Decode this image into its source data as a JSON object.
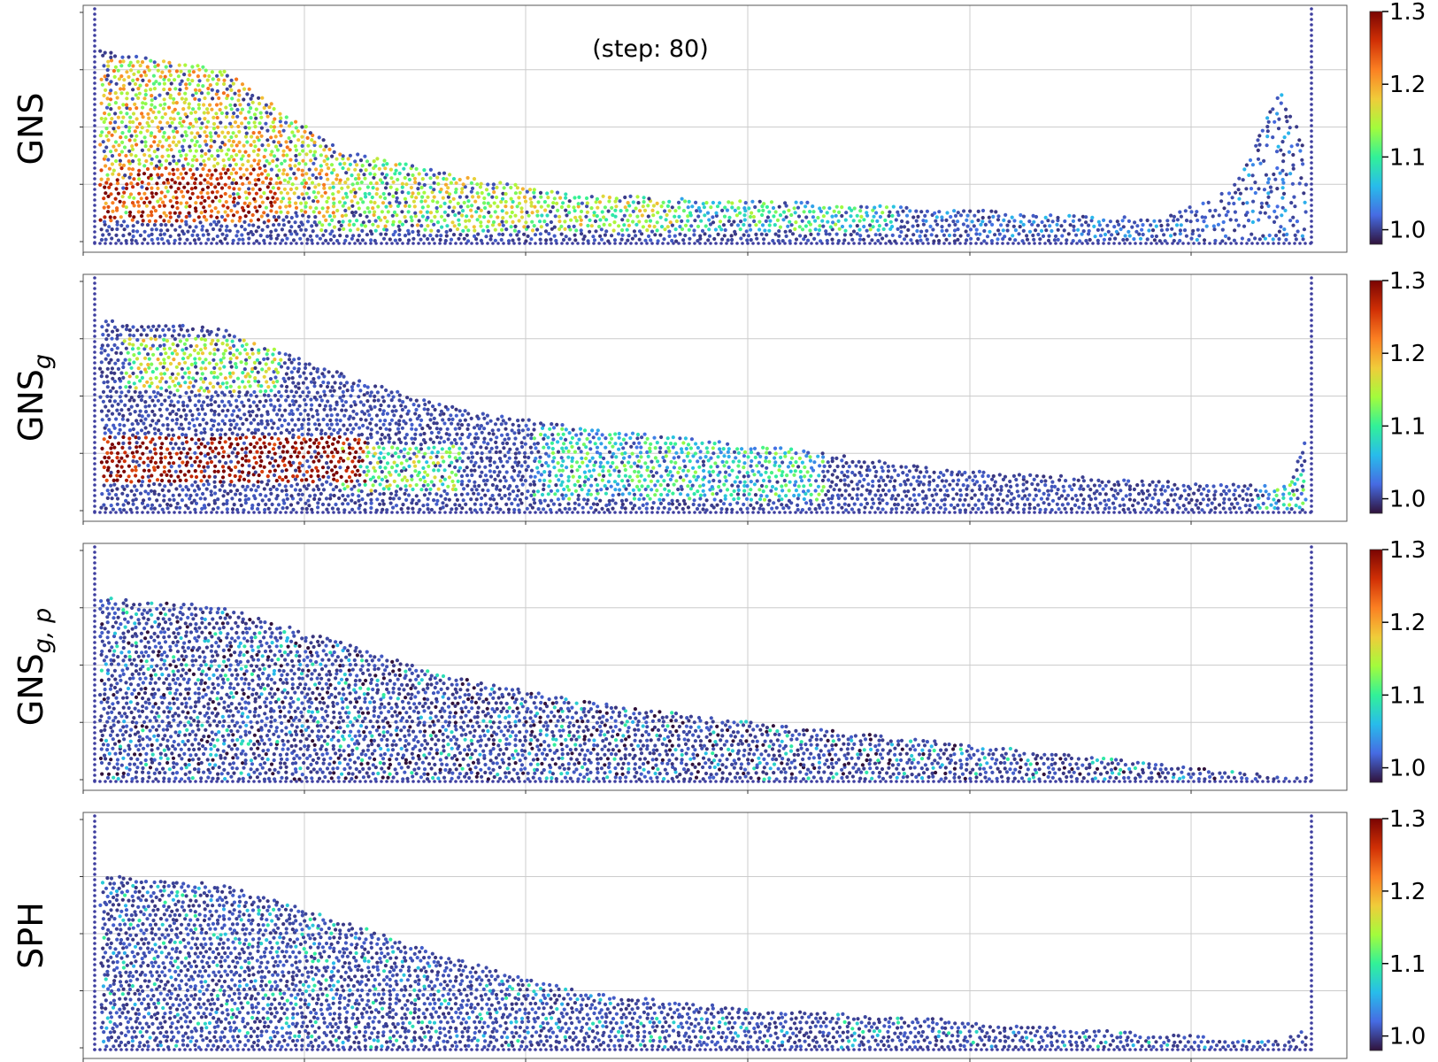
{
  "annotation": "(step: 80)",
  "colormap": "turbo",
  "colors": {
    "background": "#ffffff",
    "frame": "#000000",
    "grid": "#cccccc",
    "wall": "#3f3fa0"
  },
  "chart_data": [
    {
      "type": "scatter",
      "name": "GNS",
      "ylabel": {
        "base": "GNS",
        "sub": ""
      },
      "color_scale": {
        "min": 0.98,
        "max": 1.3,
        "ticks": [
          "1.0",
          "1.1",
          "1.2",
          "1.3"
        ]
      },
      "grid": true,
      "surface": [
        [
          0,
          0.21
        ],
        [
          0.1,
          0.19
        ],
        [
          0.2,
          0.1
        ],
        [
          0.3,
          0.07
        ],
        [
          0.4,
          0.05
        ],
        [
          0.58,
          0.042
        ],
        [
          0.7,
          0.035
        ],
        [
          0.8,
          0.027
        ],
        [
          0.88,
          0.024
        ],
        [
          0.94,
          0.062
        ],
        [
          0.97,
          0.15
        ],
        [
          0.98,
          0.18
        ],
        [
          0.985,
          0.15
        ],
        [
          1,
          0.1
        ]
      ],
      "density_regions": [
        {
          "x": [
            0,
            0.15
          ],
          "y": [
            0.02,
            0.08
          ],
          "value": 1.26
        },
        {
          "x": [
            0,
            0.2
          ],
          "y": [
            0.03,
            0.2
          ],
          "value": 1.17
        },
        {
          "x": [
            0.18,
            0.48
          ],
          "y": [
            0.01,
            0.09
          ],
          "value": 1.14
        },
        {
          "x": [
            0.48,
            0.66
          ],
          "y": [
            0.01,
            0.05
          ],
          "value": 1.09
        },
        {
          "x": [
            0.66,
            1
          ],
          "y": [
            0,
            0.2
          ],
          "value": 1.0
        }
      ]
    },
    {
      "type": "scatter",
      "name": "GNS_g",
      "ylabel": {
        "base": "GNS",
        "sub": "g"
      },
      "color_scale": {
        "min": 0.98,
        "max": 1.3,
        "ticks": [
          "1.0",
          "1.1",
          "1.2",
          "1.3"
        ]
      },
      "grid": true,
      "surface": [
        [
          0,
          0.21
        ],
        [
          0.1,
          0.2
        ],
        [
          0.2,
          0.15
        ],
        [
          0.3,
          0.11
        ],
        [
          0.4,
          0.09
        ],
        [
          0.55,
          0.07
        ],
        [
          0.7,
          0.045
        ],
        [
          0.82,
          0.035
        ],
        [
          0.9,
          0.03
        ],
        [
          0.985,
          0.025
        ],
        [
          1,
          0.08
        ]
      ],
      "density_regions": [
        {
          "x": [
            0,
            0.22
          ],
          "y": [
            0.03,
            0.08
          ],
          "value": 1.3
        },
        {
          "x": [
            0.02,
            0.15
          ],
          "y": [
            0.13,
            0.19
          ],
          "value": 1.14
        },
        {
          "x": [
            0.2,
            0.3
          ],
          "y": [
            0.02,
            0.07
          ],
          "value": 1.12
        },
        {
          "x": [
            0.36,
            0.6
          ],
          "y": [
            0.01,
            0.09
          ],
          "value": 1.08
        },
        {
          "x": [
            0.96,
            1
          ],
          "y": [
            0,
            0.04
          ],
          "value": 1.08
        }
      ]
    },
    {
      "type": "scatter",
      "name": "GNS_g,p",
      "ylabel": {
        "base": "GNS",
        "sub": "g, p"
      },
      "color_scale": {
        "min": 0.98,
        "max": 1.3,
        "ticks": [
          "1.0",
          "1.1",
          "1.2",
          "1.3"
        ]
      },
      "grid": true,
      "surface": [
        [
          0,
          0.2
        ],
        [
          0.1,
          0.19
        ],
        [
          0.2,
          0.15
        ],
        [
          0.3,
          0.11
        ],
        [
          0.4,
          0.085
        ],
        [
          0.55,
          0.06
        ],
        [
          0.7,
          0.04
        ],
        [
          0.8,
          0.027
        ],
        [
          0.9,
          0.012
        ],
        [
          0.97,
          0.003
        ],
        [
          1,
          0
        ]
      ],
      "density_regions": []
    },
    {
      "type": "scatter",
      "name": "SPH",
      "ylabel": {
        "base": "SPH",
        "sub": ""
      },
      "color_scale": {
        "min": 0.98,
        "max": 1.3,
        "ticks": [
          "1.0",
          "1.1",
          "1.2",
          "1.3"
        ]
      },
      "grid": true,
      "surface": [
        [
          0,
          0.19
        ],
        [
          0.1,
          0.18
        ],
        [
          0.2,
          0.14
        ],
        [
          0.3,
          0.095
        ],
        [
          0.4,
          0.06
        ],
        [
          0.55,
          0.04
        ],
        [
          0.7,
          0.03
        ],
        [
          0.8,
          0.02
        ],
        [
          0.9,
          0.012
        ],
        [
          0.98,
          0.005
        ],
        [
          1,
          0.02
        ]
      ],
      "density_regions": []
    }
  ]
}
